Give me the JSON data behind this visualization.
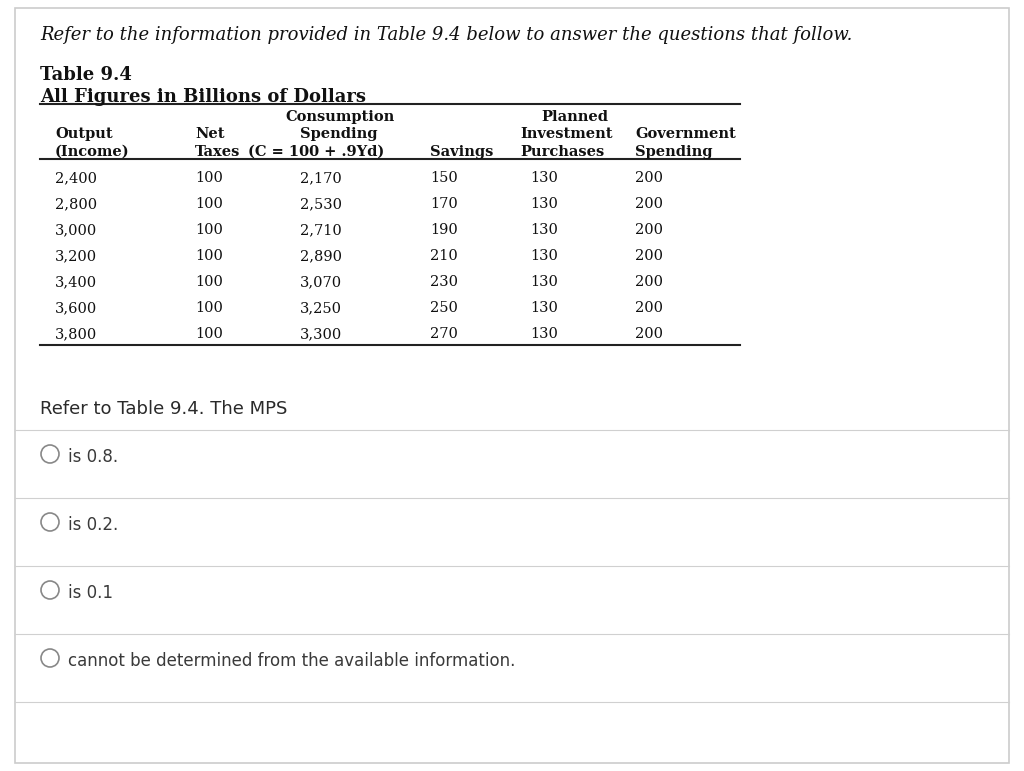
{
  "intro_text": "Refer to the information provided in Table 9.4 below to answer the questions that follow.",
  "table_title1": "Table 9.4",
  "table_title2": "All Figures in Billions of Dollars",
  "columns": {
    "output": [
      "2,400",
      "2,800",
      "3,000",
      "3,200",
      "3,400",
      "3,600",
      "3,800"
    ],
    "net_taxes": [
      "100",
      "100",
      "100",
      "100",
      "100",
      "100",
      "100"
    ],
    "consumption": [
      "2,170",
      "2,530",
      "2,710",
      "2,890",
      "3,070",
      "3,250",
      "3,300"
    ],
    "savings": [
      "150",
      "170",
      "190",
      "210",
      "230",
      "250",
      "270"
    ],
    "planned_inv": [
      "130",
      "130",
      "130",
      "130",
      "130",
      "130",
      "130"
    ],
    "gov_spending": [
      "200",
      "200",
      "200",
      "200",
      "200",
      "200",
      "200"
    ]
  },
  "question_text": "Refer to Table 9.4. The MPS",
  "options": [
    "is 0.8.",
    "is 0.2.",
    "is 0.1",
    "cannot be determined from the available information."
  ],
  "bg_color": "#ffffff",
  "text_dark": "#1a1a1a",
  "text_medium": "#4a4a4a",
  "line_gray": "#d0d0d0",
  "line_black": "#222222",
  "circle_color": "#888888"
}
